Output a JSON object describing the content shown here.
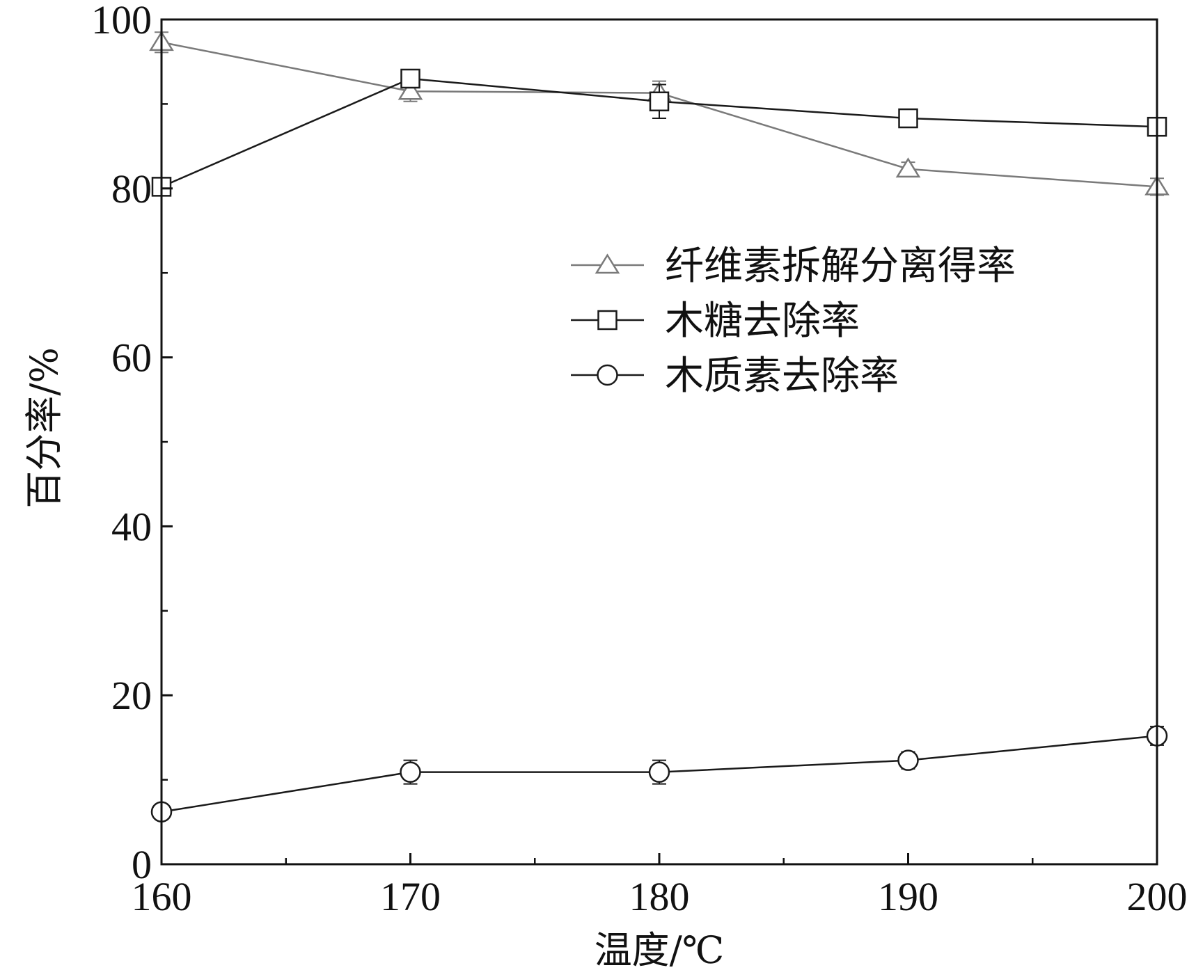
{
  "chart_data": {
    "type": "line",
    "title": "",
    "xlabel": "温度/℃",
    "ylabel": "百分率/%",
    "xlim": [
      160,
      200
    ],
    "ylim": [
      0,
      100
    ],
    "x": [
      160,
      170,
      180,
      190,
      200
    ],
    "xticks": [
      160,
      170,
      180,
      190,
      200
    ],
    "yticks": [
      0,
      20,
      40,
      60,
      80,
      100
    ],
    "grid": false,
    "legend_position": "upper-right",
    "series": [
      {
        "name": "纤维素拆解分离得率",
        "marker": "triangle",
        "color": "#7a7a7a",
        "values": [
          97.3,
          91.5,
          91.3,
          82.3,
          80.2
        ],
        "errors": [
          1.2,
          1.2,
          1.4,
          0.8,
          1.0
        ]
      },
      {
        "name": "木糖去除率",
        "marker": "square",
        "color": "#1a1a1a",
        "values": [
          80.2,
          93.0,
          90.3,
          88.3,
          87.3
        ],
        "errors": [
          0.4,
          0.8,
          2.0,
          0.5,
          0.5
        ]
      },
      {
        "name": "木质素去除率",
        "marker": "circle",
        "color": "#1a1a1a",
        "values": [
          6.2,
          10.9,
          10.9,
          12.3,
          15.2
        ],
        "errors": [
          0.4,
          1.4,
          1.4,
          1.0,
          1.1
        ]
      }
    ]
  }
}
